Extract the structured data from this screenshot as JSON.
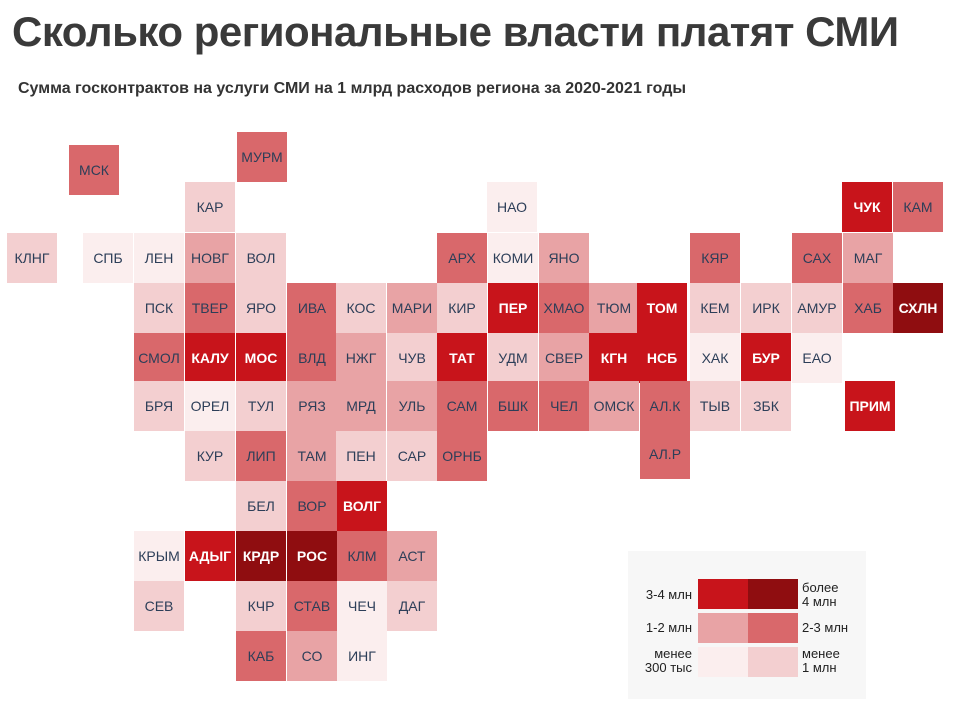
{
  "title": "Сколько региональные власти платят СМИ",
  "subtitle": "Сумма госконтрактов на услуги СМИ на 1 млрд расходов региона за 2020-2021 годы",
  "scale_colors": [
    "#fbeeee",
    "#f3cfd0",
    "#e8a3a5",
    "#d9686b",
    "#c8141b",
    "#8f0d10"
  ],
  "regions": [
    {
      "label": "МСК",
      "level": 3
    },
    {
      "label": "МУРМ",
      "level": 3
    },
    {
      "label": "КАР",
      "level": 1
    },
    {
      "label": "НАО",
      "level": 0
    },
    {
      "label": "ЧУК",
      "level": 4
    },
    {
      "label": "КАМ",
      "level": 3
    },
    {
      "label": "КЛНГ",
      "level": 1
    },
    {
      "label": "СПБ",
      "level": 0
    },
    {
      "label": "ЛЕН",
      "level": 0
    },
    {
      "label": "НОВГ",
      "level": 2
    },
    {
      "label": "ВОЛ",
      "level": 1
    },
    {
      "label": "АРХ",
      "level": 3
    },
    {
      "label": "КОМИ",
      "level": 0
    },
    {
      "label": "ЯНО",
      "level": 2
    },
    {
      "label": "КЯР",
      "level": 3
    },
    {
      "label": "САХ",
      "level": 3
    },
    {
      "label": "МАГ",
      "level": 2
    },
    {
      "label": "ПСК",
      "level": 1
    },
    {
      "label": "ТВЕР",
      "level": 3
    },
    {
      "label": "ЯРО",
      "level": 1
    },
    {
      "label": "ИВА",
      "level": 3
    },
    {
      "label": "КОС",
      "level": 1
    },
    {
      "label": "МАРИ",
      "level": 2
    },
    {
      "label": "КИР",
      "level": 1
    },
    {
      "label": "ПЕР",
      "level": 4
    },
    {
      "label": "ХМАО",
      "level": 3
    },
    {
      "label": "ТЮМ",
      "level": 2
    },
    {
      "label": "ТОМ",
      "level": 4
    },
    {
      "label": "КЕМ",
      "level": 1
    },
    {
      "label": "ИРК",
      "level": 1
    },
    {
      "label": "АМУР",
      "level": 1
    },
    {
      "label": "ХАБ",
      "level": 3
    },
    {
      "label": "СХЛН",
      "level": 5
    },
    {
      "label": "СМОЛ",
      "level": 3
    },
    {
      "label": "КАЛУ",
      "level": 4
    },
    {
      "label": "МОС",
      "level": 4
    },
    {
      "label": "ВЛД",
      "level": 3
    },
    {
      "label": "НЖГ",
      "level": 2
    },
    {
      "label": "ЧУВ",
      "level": 1
    },
    {
      "label": "ТАТ",
      "level": 4
    },
    {
      "label": "УДМ",
      "level": 1
    },
    {
      "label": "СВЕР",
      "level": 2
    },
    {
      "label": "КГН",
      "level": 4
    },
    {
      "label": "НСБ",
      "level": 4
    },
    {
      "label": "ХАК",
      "level": 0
    },
    {
      "label": "БУР",
      "level": 4
    },
    {
      "label": "ЕАО",
      "level": 0
    },
    {
      "label": "БРЯ",
      "level": 1
    },
    {
      "label": "ОРЕЛ",
      "level": 0
    },
    {
      "label": "ТУЛ",
      "level": 1
    },
    {
      "label": "РЯЗ",
      "level": 2
    },
    {
      "label": "МРД",
      "level": 2
    },
    {
      "label": "УЛЬ",
      "level": 2
    },
    {
      "label": "САМ",
      "level": 3
    },
    {
      "label": "БШК",
      "level": 3
    },
    {
      "label": "ЧЕЛ",
      "level": 3
    },
    {
      "label": "ОМСК",
      "level": 2
    },
    {
      "label": "АЛ.К",
      "level": 3
    },
    {
      "label": "ТЫВ",
      "level": 1
    },
    {
      "label": "ЗБК",
      "level": 1
    },
    {
      "label": "ПРИМ",
      "level": 4
    },
    {
      "label": "КУР",
      "level": 1
    },
    {
      "label": "ЛИП",
      "level": 3
    },
    {
      "label": "ТАМ",
      "level": 2
    },
    {
      "label": "ПЕН",
      "level": 1
    },
    {
      "label": "САР",
      "level": 1
    },
    {
      "label": "ОРНБ",
      "level": 3
    },
    {
      "label": "АЛ.Р",
      "level": 3
    },
    {
      "label": "БЕЛ",
      "level": 1
    },
    {
      "label": "ВОР",
      "level": 3
    },
    {
      "label": "ВОЛГ",
      "level": 4
    },
    {
      "label": "КРЫМ",
      "level": 0
    },
    {
      "label": "АДЫГ",
      "level": 4
    },
    {
      "label": "КРДР",
      "level": 5
    },
    {
      "label": "РОС",
      "level": 5
    },
    {
      "label": "КЛМ",
      "level": 3
    },
    {
      "label": "АСТ",
      "level": 2
    },
    {
      "label": "СЕВ",
      "level": 1
    },
    {
      "label": "КЧР",
      "level": 1
    },
    {
      "label": "СТАВ",
      "level": 3
    },
    {
      "label": "ЧЕЧ",
      "level": 0
    },
    {
      "label": "ДАГ",
      "level": 1
    },
    {
      "label": "КАБ",
      "level": 3
    },
    {
      "label": "СО",
      "level": 2
    },
    {
      "label": "ИНГ",
      "level": 0
    }
  ],
  "legend": {
    "label_3_4": "3-4 млн",
    "label_more_4_a": "более",
    "label_more_4_b": "4 млн",
    "label_1_2": "1-2 млн",
    "label_2_3": "2-3 млн",
    "label_less_300_a": "менее",
    "label_less_300_b": "300 тыс",
    "label_less_1_a": "менее",
    "label_less_1_b": "1 млн"
  }
}
